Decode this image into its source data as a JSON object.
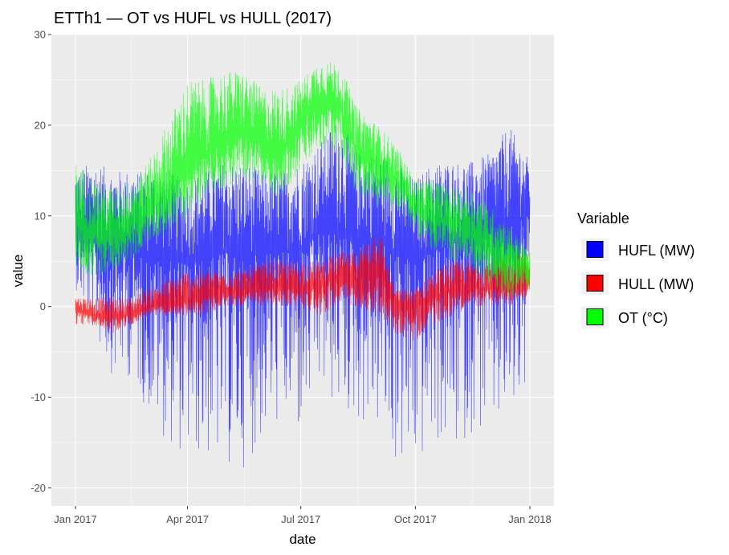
{
  "chart_data": {
    "type": "line",
    "title": "ETTh1 — OT vs HUFL vs HULL (2017)",
    "xlabel": "date",
    "ylabel": "value",
    "x_range": [
      "2017-01-01",
      "2018-01-01"
    ],
    "ylim": [
      -22,
      30
    ],
    "x_ticks": [
      {
        "date": "2017-01-01",
        "label": "Jan 2017"
      },
      {
        "date": "2017-04-01",
        "label": "Apr 2017"
      },
      {
        "date": "2017-07-01",
        "label": "Jul 2017"
      },
      {
        "date": "2017-10-01",
        "label": "Oct 2017"
      },
      {
        "date": "2018-01-01",
        "label": "Jan 2018"
      }
    ],
    "y_ticks": [
      {
        "value": -20,
        "label": "-20"
      },
      {
        "value": -10,
        "label": "-10"
      },
      {
        "value": 0,
        "label": "0"
      },
      {
        "value": 10,
        "label": "10"
      },
      {
        "value": 20,
        "label": "20"
      },
      {
        "value": 30,
        "label": "30"
      }
    ],
    "grid": true,
    "legend": {
      "title": "Variable",
      "position": "right"
    },
    "series": [
      {
        "name": "HUFL (MW)",
        "color": "#0000ff",
        "x": [
          "2017-01-01",
          "2017-01-15",
          "2017-02-01",
          "2017-02-15",
          "2017-03-01",
          "2017-03-15",
          "2017-04-01",
          "2017-04-15",
          "2017-05-01",
          "2017-05-15",
          "2017-06-01",
          "2017-06-15",
          "2017-07-01",
          "2017-07-15",
          "2017-08-01",
          "2017-08-15",
          "2017-09-01",
          "2017-09-15",
          "2017-10-01",
          "2017-10-15",
          "2017-11-01",
          "2017-11-15",
          "2017-12-01",
          "2017-12-15",
          "2018-01-01"
        ],
        "mean": [
          8,
          7,
          6,
          6,
          5,
          5,
          5,
          5,
          6,
          5,
          6,
          6,
          6,
          8,
          8,
          7,
          7,
          6,
          5,
          6,
          7,
          7,
          8,
          9,
          10
        ],
        "min": [
          2,
          -3,
          -8,
          -8,
          -12,
          -15,
          -17,
          -17,
          -18,
          -18,
          -15,
          -13,
          -15,
          -10,
          -12,
          -13,
          -14,
          -18,
          -19,
          -15,
          -17,
          -14,
          -15,
          -14,
          -10
        ],
        "max": [
          15,
          16,
          15,
          15,
          15,
          15,
          14,
          15,
          16,
          16,
          15,
          15,
          16,
          18,
          21,
          17,
          17,
          16,
          14,
          16,
          16,
          16,
          17,
          20,
          16
        ]
      },
      {
        "name": "HULL (MW)",
        "color": "#ff0000",
        "x": [
          "2017-01-01",
          "2017-01-15",
          "2017-02-01",
          "2017-02-15",
          "2017-03-01",
          "2017-03-15",
          "2017-04-01",
          "2017-04-15",
          "2017-05-01",
          "2017-05-15",
          "2017-06-01",
          "2017-06-15",
          "2017-07-01",
          "2017-07-15",
          "2017-08-01",
          "2017-08-15",
          "2017-09-01",
          "2017-09-15",
          "2017-10-01",
          "2017-10-15",
          "2017-11-01",
          "2017-11-15",
          "2017-12-01",
          "2017-12-15",
          "2018-01-01"
        ],
        "mean": [
          0,
          -1,
          -1,
          -1,
          0,
          0,
          0.5,
          1,
          1.5,
          1.5,
          2,
          2,
          2,
          2.5,
          3,
          3,
          4,
          0,
          0,
          1,
          2,
          2,
          2,
          2,
          3
        ],
        "min": [
          -2,
          -2,
          -3,
          -2,
          -1,
          -1,
          -1,
          -1,
          0,
          0,
          0,
          0,
          0,
          -1,
          0,
          0,
          -1,
          -3,
          -4,
          -2,
          -1,
          0,
          0,
          0,
          1
        ],
        "max": [
          1,
          1,
          1,
          1,
          2,
          3,
          4,
          4,
          4,
          4,
          5,
          5,
          5,
          5,
          6,
          6,
          9,
          2,
          2,
          4,
          5,
          5,
          5,
          6,
          6
        ]
      },
      {
        "name": "OT (°C)",
        "color": "#00ff00",
        "x": [
          "2017-01-01",
          "2017-01-15",
          "2017-02-01",
          "2017-02-15",
          "2017-03-01",
          "2017-03-15",
          "2017-04-01",
          "2017-04-15",
          "2017-05-01",
          "2017-05-15",
          "2017-06-01",
          "2017-06-15",
          "2017-07-01",
          "2017-07-15",
          "2017-08-01",
          "2017-08-15",
          "2017-09-01",
          "2017-09-15",
          "2017-10-01",
          "2017-10-15",
          "2017-11-01",
          "2017-11-15",
          "2017-12-01",
          "2017-12-15",
          "2018-01-01"
        ],
        "mean": [
          10,
          8,
          8,
          9,
          11,
          12,
          15,
          17,
          18,
          19,
          18,
          17,
          20,
          23,
          22,
          17,
          16,
          14,
          11,
          10,
          9,
          8,
          6,
          5,
          4
        ],
        "min": [
          4,
          3,
          4,
          5,
          7,
          8,
          10,
          12,
          13,
          14,
          13,
          12,
          15,
          17,
          17,
          12,
          11,
          11,
          8,
          6,
          5,
          4,
          2,
          1,
          2
        ],
        "max": [
          16,
          14,
          13,
          14,
          16,
          20,
          25,
          25,
          26,
          26,
          24,
          24,
          25,
          27,
          27,
          22,
          20,
          18,
          14,
          14,
          13,
          13,
          11,
          9,
          6
        ]
      }
    ]
  }
}
